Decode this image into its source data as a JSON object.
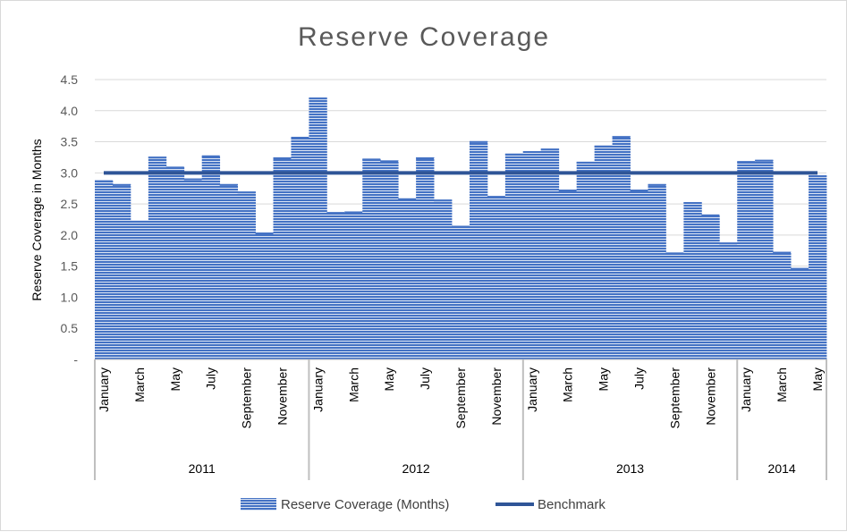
{
  "chart_data": {
    "type": "bar",
    "title": "Reserve Coverage",
    "ylabel": "Reserve Coverage in Months",
    "ylim": [
      0,
      4.5
    ],
    "yticks": [
      "-",
      "0.5",
      "1.0",
      "1.5",
      "2.0",
      "2.5",
      "3.0",
      "3.5",
      "4.0",
      "4.5"
    ],
    "month_labels": [
      "January",
      "March",
      "May",
      "July",
      "September",
      "November"
    ],
    "month_labels_2014": [
      "January",
      "March",
      "May"
    ],
    "years": [
      {
        "label": "2011",
        "months": 12
      },
      {
        "label": "2012",
        "months": 12
      },
      {
        "label": "2013",
        "months": 12
      },
      {
        "label": "2014",
        "months": 5
      }
    ],
    "series": [
      {
        "name": "Reserve Coverage (Months)",
        "type": "bar",
        "values": [
          2.88,
          2.82,
          2.23,
          3.26,
          3.1,
          2.91,
          3.28,
          2.82,
          2.7,
          2.04,
          3.25,
          3.58,
          4.21,
          2.37,
          2.38,
          3.23,
          3.2,
          2.59,
          3.25,
          2.57,
          2.15,
          3.51,
          2.63,
          3.31,
          3.35,
          3.39,
          2.73,
          3.18,
          3.44,
          3.59,
          2.73,
          2.82,
          1.72,
          2.53,
          2.33,
          1.88,
          3.19,
          3.21,
          1.73,
          1.47,
          2.96
        ]
      },
      {
        "name": "Benchmark",
        "type": "line",
        "values": [
          3.0
        ]
      }
    ],
    "legend_position": "bottom",
    "colors": {
      "bar_fill": "#4472C4",
      "bar_stripe": "#ffffff",
      "benchmark": "#2F5597",
      "grid": "#d9d9d9",
      "axis": "#bfbfbf"
    }
  }
}
